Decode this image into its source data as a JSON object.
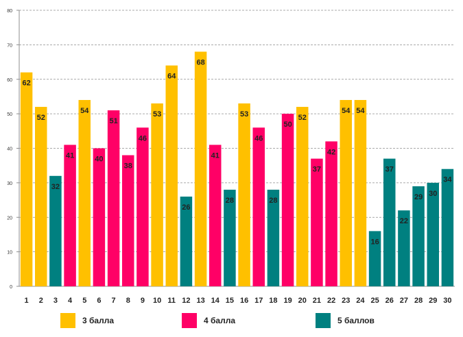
{
  "chart_data": {
    "type": "bar",
    "title": "",
    "xlabel": "",
    "ylabel": "",
    "ylim": [
      0,
      80
    ],
    "yticks": [
      0,
      10,
      20,
      30,
      40,
      50,
      60,
      70,
      80
    ],
    "grid": true,
    "categories": [
      "1",
      "2",
      "3",
      "4",
      "5",
      "6",
      "7",
      "8",
      "9",
      "10",
      "11",
      "12",
      "13",
      "14",
      "15",
      "16",
      "17",
      "18",
      "19",
      "20",
      "21",
      "22",
      "23",
      "24",
      "25",
      "26",
      "27",
      "28",
      "29",
      "30"
    ],
    "values": [
      62,
      52,
      32,
      41,
      54,
      40,
      51,
      38,
      46,
      53,
      64,
      26,
      68,
      41,
      28,
      53,
      46,
      28,
      50,
      52,
      37,
      42,
      54,
      54,
      16,
      37,
      22,
      29,
      30,
      34
    ],
    "groups": [
      3,
      3,
      5,
      4,
      3,
      4,
      4,
      4,
      4,
      3,
      3,
      5,
      3,
      4,
      5,
      3,
      4,
      5,
      4,
      3,
      4,
      4,
      3,
      3,
      5,
      5,
      5,
      5,
      5,
      5
    ],
    "colors": {
      "3": "#FFC000",
      "4": "#FF0066",
      "5": "#008080"
    },
    "legend": [
      {
        "group": 3,
        "label": "3 балла"
      },
      {
        "group": 4,
        "label": "4 балла"
      },
      {
        "group": 5,
        "label": "5 баллов"
      }
    ]
  }
}
